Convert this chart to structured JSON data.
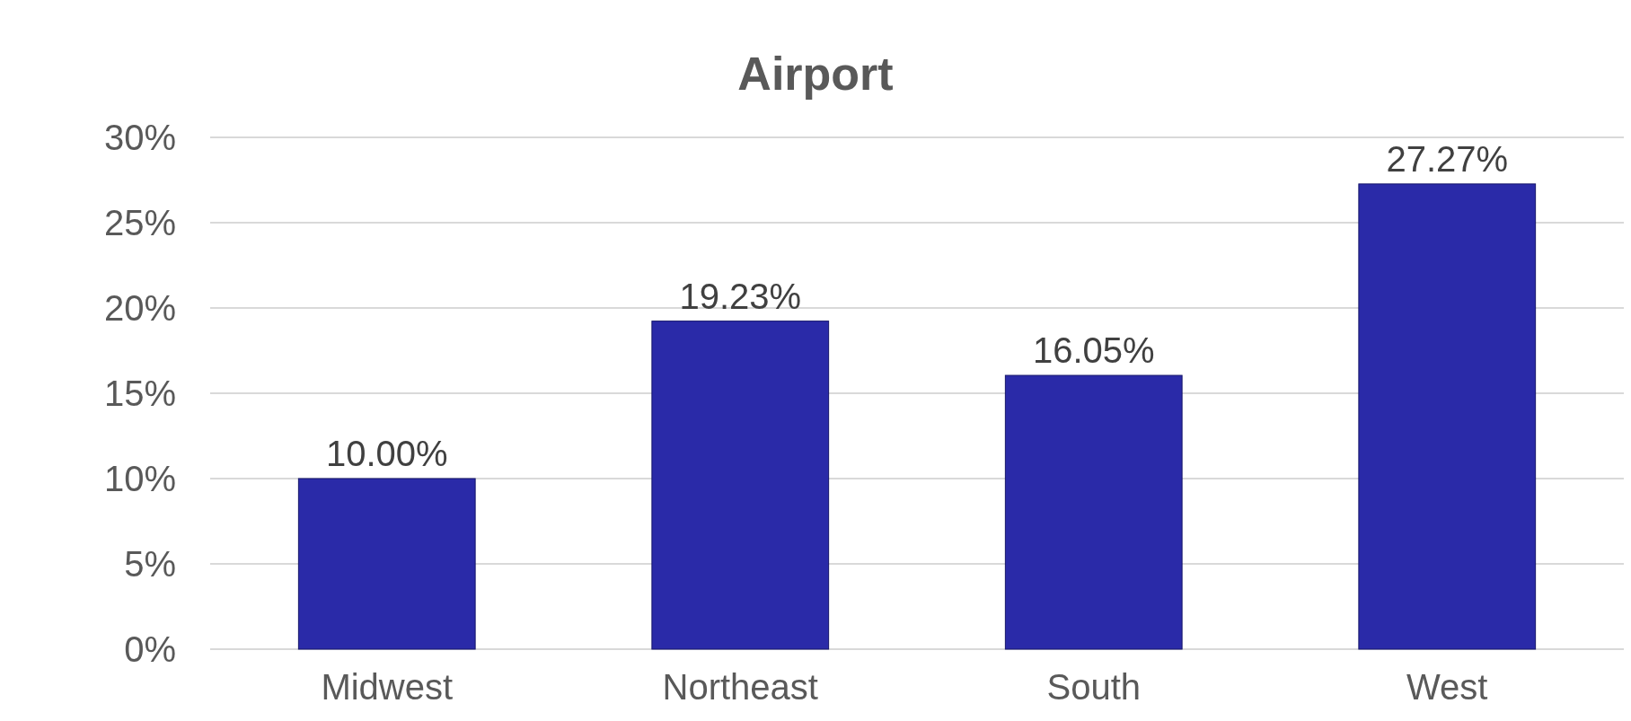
{
  "chart_data": {
    "type": "bar",
    "title": "Airport",
    "categories": [
      "Midwest",
      "Northeast",
      "South",
      "West"
    ],
    "values": [
      10,
      19.23,
      16.05,
      27.27
    ],
    "value_labels": [
      "10.00%",
      "19.23%",
      "16.05%",
      "27.27%"
    ],
    "color": "#2a2aa8",
    "ylim": [
      0,
      30
    ],
    "yticks": [
      {
        "value": 0,
        "label": "0%"
      },
      {
        "value": 5,
        "label": "5%"
      },
      {
        "value": 10,
        "label": "10%"
      },
      {
        "value": 15,
        "label": "15%"
      },
      {
        "value": 20,
        "label": "20%"
      },
      {
        "value": 25,
        "label": "25%"
      },
      {
        "value": 30,
        "label": "30%"
      }
    ],
    "grid": "y"
  }
}
